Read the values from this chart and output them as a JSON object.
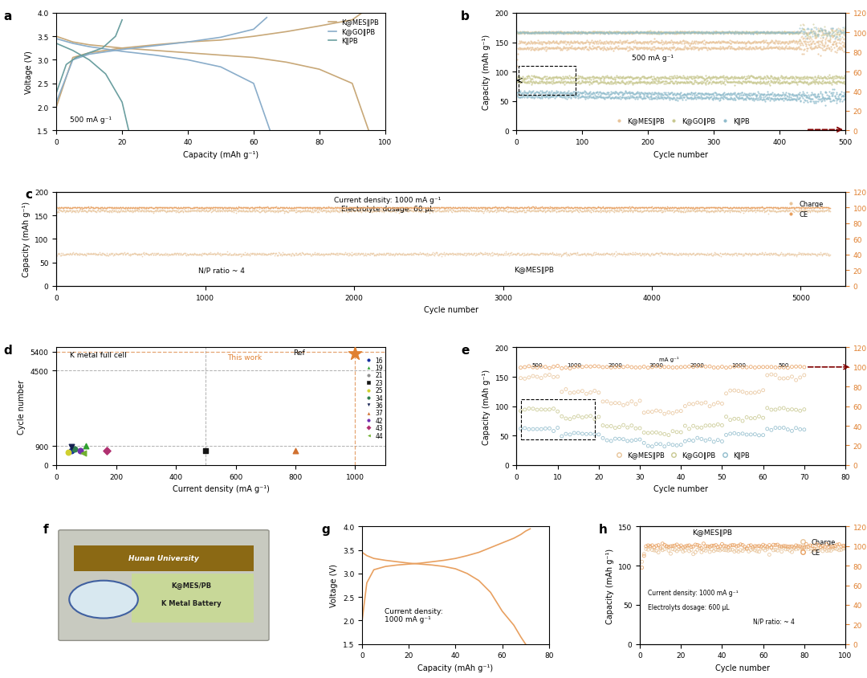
{
  "panel_a": {
    "xlabel": "Capacity (mAh g⁻¹)",
    "ylabel": "Voltage (V)",
    "annotation": "500 mA g⁻¹",
    "xlim": [
      0,
      100
    ],
    "ylim": [
      1.5,
      4.0
    ],
    "yticks": [
      1.5,
      2.0,
      2.5,
      3.0,
      3.5,
      4.0
    ],
    "xticks": [
      0,
      20,
      40,
      60,
      80,
      100
    ],
    "c_mes": "#c8a878",
    "c_go": "#8aadca",
    "c_k": "#6b9fa0",
    "legend": [
      "K@MES‖PB",
      "K@GO‖PB",
      "K‖PB"
    ]
  },
  "panel_b": {
    "xlabel": "Cycle number",
    "ylabel_left": "Capacity (mAh g⁻¹)",
    "ylabel_right": "CE (%)",
    "annotation": "500 mA g⁻¹",
    "xlim": [
      0,
      500
    ],
    "ylim_left": [
      0,
      200
    ],
    "ylim_right": [
      0,
      120
    ],
    "yticks_left": [
      0,
      50,
      100,
      150,
      200
    ],
    "yticks_right": [
      0,
      20,
      40,
      60,
      80,
      100,
      120
    ],
    "xticks": [
      0,
      100,
      200,
      300,
      400,
      500
    ],
    "c_mes": "#e8c49a",
    "c_go": "#c8c890",
    "c_k": "#90bccc",
    "legend": [
      "K@MES‖PB",
      "K@GO‖PB",
      "K‖PB"
    ]
  },
  "panel_c": {
    "xlabel": "Cycle number",
    "ylabel_left": "Capacity (mAh g⁻¹)",
    "ylabel_right": "CE (%)",
    "ann1": "Current density: 1000 mA g⁻¹",
    "ann2": "Electrolyte dosage: 60 μL",
    "ann3": "N/P ratio ~ 4",
    "ann4": "K@MES‖PB",
    "xlim": [
      0,
      5300
    ],
    "ylim_left": [
      0,
      200
    ],
    "ylim_right": [
      0,
      120
    ],
    "yticks_left": [
      0,
      50,
      100,
      150,
      200
    ],
    "yticks_right": [
      0,
      20,
      40,
      60,
      80,
      100,
      120
    ],
    "xticks": [
      0,
      1000,
      2000,
      3000,
      4000,
      5000
    ],
    "c_charge": "#e8c49a",
    "c_ce": "#e8a060"
  },
  "panel_d": {
    "xlabel": "Current density (mA g⁻¹)",
    "ylabel": "Cycle number",
    "ann1": "K metal full cell",
    "ann2": "This work",
    "xlim": [
      0,
      1100
    ],
    "ylim": [
      0,
      5600
    ],
    "xticks": [
      0,
      200,
      400,
      600,
      800,
      1000
    ],
    "yticks_show": [
      0,
      900,
      4500,
      5400
    ],
    "c_this": "#e08030"
  },
  "panel_e": {
    "xlabel": "Cycle number",
    "ylabel_left": "Capacity (mAh g⁻¹)",
    "ylabel_right": "CE (%)",
    "xlim": [
      0,
      80
    ],
    "ylim_left": [
      0,
      200
    ],
    "ylim_right": [
      0,
      120
    ],
    "xticks": [
      0,
      10,
      20,
      30,
      40,
      50,
      60,
      70,
      80
    ],
    "yticks_left": [
      0,
      50,
      100,
      150,
      200
    ],
    "yticks_right": [
      0,
      20,
      40,
      60,
      80,
      100,
      120
    ],
    "c_mes": "#e8c49a",
    "c_go": "#c8c890",
    "c_k": "#90bccc",
    "rate_labels": [
      "500",
      "1000",
      "2000",
      "3000",
      "2000",
      "1000",
      "500"
    ],
    "rate_x": [
      4,
      14,
      24,
      34,
      44,
      54,
      68
    ],
    "ann_mga": "mA g⁻¹",
    "legend": [
      "K@MES‖PB",
      "K@GO‖PB",
      "K‖PB"
    ]
  },
  "panel_g": {
    "xlabel": "Capacity (mAh g⁻¹)",
    "ylabel": "Voltage (V)",
    "ann": "Current density:\n1000 mA g⁻¹",
    "xlim": [
      0,
      80
    ],
    "ylim": [
      1.5,
      4.0
    ],
    "yticks": [
      1.5,
      2.0,
      2.5,
      3.0,
      3.5,
      4.0
    ],
    "xticks": [
      0,
      20,
      40,
      60,
      80
    ],
    "color": "#e8a060"
  },
  "panel_h": {
    "xlabel": "Cycle number",
    "ylabel_left": "Capacity (mAh g⁻¹)",
    "ylabel_right": "CE (%)",
    "ann1": "K@MES‖PB",
    "ann2": "Charge",
    "ann3": "CE",
    "ann4": "Current density: 1000 mA g⁻¹",
    "ann5": "Electrolyts dosage: 600 μL",
    "ann6": "N/P ratio: ~ 4",
    "xlim": [
      0,
      100
    ],
    "ylim_left": [
      0,
      150
    ],
    "ylim_right": [
      0,
      120
    ],
    "yticks_left": [
      0,
      50,
      100,
      150
    ],
    "yticks_right": [
      0,
      20,
      40,
      60,
      80,
      100,
      120
    ],
    "xticks": [
      0,
      20,
      40,
      60,
      80,
      100
    ],
    "c_charge": "#e8c49a",
    "c_ce": "#e8a060"
  },
  "lfs": 7,
  "tfs": 6.5,
  "plfs": 11
}
